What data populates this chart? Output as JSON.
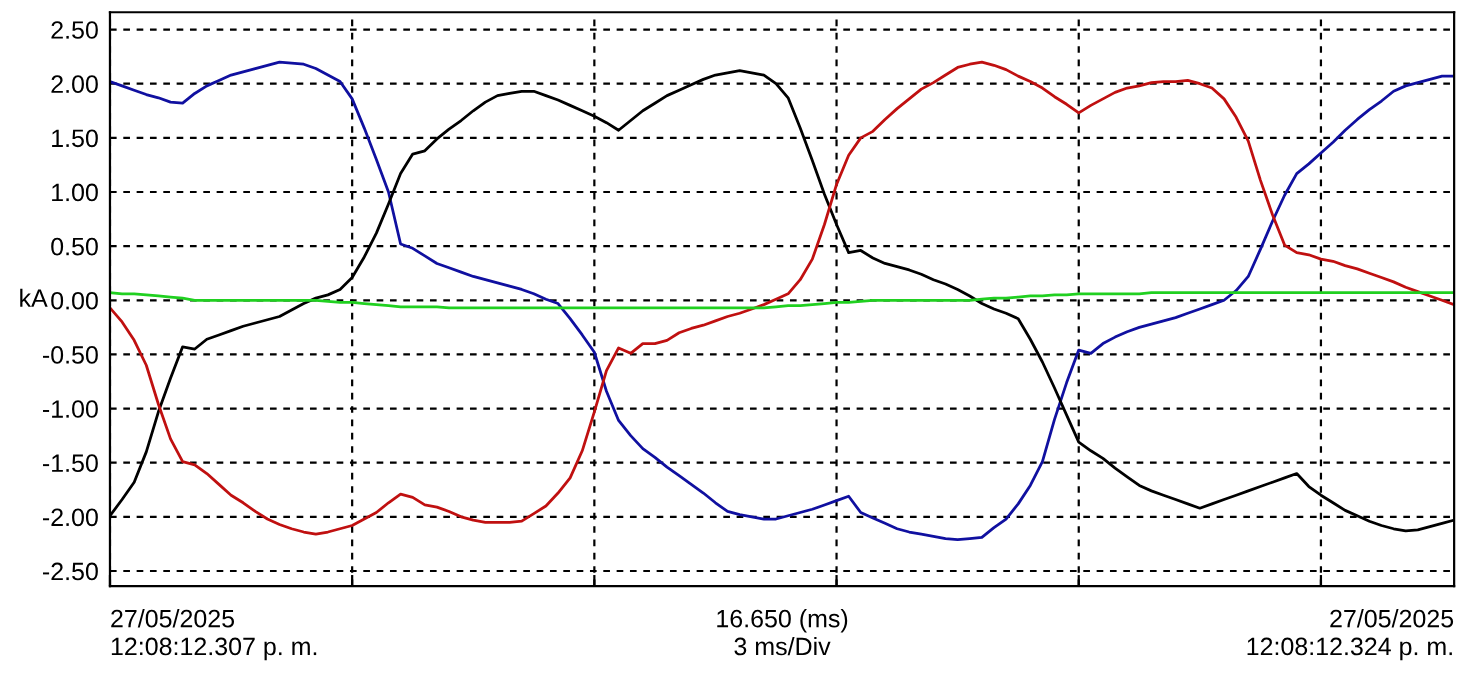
{
  "chart_data": {
    "type": "line",
    "ylabel": "kA",
    "categories": [
      null,
      null,
      null,
      null,
      null,
      null,
      null,
      null,
      null,
      null,
      null,
      null,
      null,
      null,
      null,
      null,
      null,
      null,
      null,
      null,
      null,
      null,
      null,
      null,
      null,
      null,
      null,
      null,
      null,
      null,
      null,
      null,
      null,
      null,
      null,
      null,
      null,
      null,
      null,
      null,
      null,
      null,
      null,
      null,
      null,
      null,
      null,
      null,
      null,
      null,
      null,
      null,
      null,
      null,
      null,
      null,
      null,
      null,
      null,
      null,
      null,
      null,
      null,
      null,
      null,
      null,
      null,
      null,
      null,
      null,
      null,
      null,
      null,
      null,
      null,
      null,
      null,
      null,
      null,
      null,
      null,
      null,
      null,
      null,
      null,
      null,
      null,
      null,
      null,
      null,
      null,
      null,
      null,
      null,
      null,
      null,
      null,
      null,
      null,
      null,
      null,
      null,
      null,
      null,
      null,
      null,
      null,
      null,
      null,
      null,
      null,
      null
    ],
    "ylim": [
      -2.64,
      2.66
    ],
    "yticks": [
      {
        "value": 2.5,
        "label": "2.50"
      },
      {
        "value": 2,
        "label": "2.00"
      },
      {
        "value": 1.5,
        "label": "1.50"
      },
      {
        "value": 1,
        "label": "1.00"
      },
      {
        "value": 0.5,
        "label": "0.50"
      },
      {
        "value": 0,
        "label": "0.00"
      },
      {
        "value": -0.5,
        "label": "-0.50"
      },
      {
        "value": -1,
        "label": "-1.00"
      },
      {
        "value": -1.5,
        "label": "-1.50"
      },
      {
        "value": -2,
        "label": "-2.00"
      },
      {
        "value": -2.5,
        "label": "-2.50"
      }
    ],
    "tick_labels": "y",
    "grid": true,
    "line_style": "solid",
    "marker": "none",
    "annotations": [
      "27/05/2025\n12:08:12.307 p. m.",
      "16.650 (ms)\n3 ms/Div",
      "27/05/2025\n12:08:12.324 p. m."
    ],
    "series": [
      {
        "color": "#1010a0",
        "values": [
          2.02,
          1.98,
          1.94,
          1.9,
          1.87,
          1.83,
          1.82,
          1.91,
          1.98,
          2.03,
          2.08,
          2.11,
          2.14,
          2.17,
          2.2,
          2.19,
          2.18,
          2.14,
          2.08,
          2.02,
          1.86,
          1.59,
          1.3,
          1.0,
          0.52,
          0.48,
          0.41,
          0.34,
          0.3,
          0.26,
          0.22,
          0.19,
          0.16,
          0.13,
          0.1,
          0.06,
          0.01,
          -0.03,
          -0.17,
          -0.32,
          -0.48,
          -0.84,
          -1.11,
          -1.25,
          -1.37,
          -1.45,
          -1.54,
          -1.62,
          -1.7,
          -1.78,
          -1.87,
          -1.95,
          -1.98,
          -2.0,
          -2.02,
          -2.02,
          -1.99,
          -1.96,
          -1.93,
          -1.89,
          -1.85,
          -1.81,
          -1.96,
          -2.01,
          -2.06,
          -2.11,
          -2.14,
          -2.16,
          -2.18,
          -2.2,
          -2.21,
          -2.2,
          -2.19,
          -2.1,
          -2.02,
          -1.88,
          -1.71,
          -1.49,
          -1.1,
          -0.76,
          -0.46,
          -0.49,
          -0.4,
          -0.34,
          -0.29,
          -0.25,
          -0.22,
          -0.19,
          -0.16,
          -0.12,
          -0.08,
          -0.04,
          0,
          0.09,
          0.22,
          0.47,
          0.73,
          0.97,
          1.17,
          1.26,
          1.36,
          1.46,
          1.57,
          1.67,
          1.76,
          1.84,
          1.93,
          1.98,
          2.01,
          2.04,
          2.07,
          2.07
        ]
      },
      {
        "color": "#000000",
        "values": [
          -1.99,
          -1.84,
          -1.68,
          -1.4,
          -1.03,
          -0.72,
          -0.43,
          -0.45,
          -0.36,
          -0.32,
          -0.28,
          -0.24,
          -0.21,
          -0.18,
          -0.15,
          -0.09,
          -0.03,
          0.02,
          0.05,
          0.1,
          0.21,
          0.4,
          0.62,
          0.89,
          1.17,
          1.35,
          1.38,
          1.49,
          1.58,
          1.66,
          1.75,
          1.83,
          1.89,
          1.91,
          1.93,
          1.93,
          1.89,
          1.85,
          1.8,
          1.75,
          1.7,
          1.64,
          1.57,
          1.66,
          1.75,
          1.82,
          1.89,
          1.94,
          1.99,
          2.04,
          2.08,
          2.1,
          2.12,
          2.1,
          2.08,
          2.0,
          1.87,
          1.59,
          1.29,
          0.98,
          0.7,
          0.44,
          0.46,
          0.39,
          0.34,
          0.31,
          0.28,
          0.24,
          0.19,
          0.15,
          0.1,
          0.04,
          -0.03,
          -0.08,
          -0.12,
          -0.17,
          -0.36,
          -0.57,
          -0.81,
          -1.06,
          -1.31,
          -1.39,
          -1.46,
          -1.55,
          -1.63,
          -1.71,
          -1.76,
          -1.8,
          -1.84,
          -1.88,
          -1.92,
          -1.88,
          -1.84,
          -1.8,
          -1.76,
          -1.72,
          -1.68,
          -1.64,
          -1.6,
          -1.72,
          -1.8,
          -1.87,
          -1.94,
          -1.99,
          -2.04,
          -2.08,
          -2.11,
          -2.13,
          -2.12,
          -2.09,
          -2.06,
          -2.03
        ]
      },
      {
        "color": "#c01010",
        "values": [
          -0.07,
          -0.2,
          -0.37,
          -0.6,
          -0.96,
          -1.28,
          -1.49,
          -1.52,
          -1.6,
          -1.7,
          -1.8,
          -1.87,
          -1.95,
          -2.02,
          -2.07,
          -2.11,
          -2.14,
          -2.16,
          -2.14,
          -2.11,
          -2.08,
          -2.02,
          -1.96,
          -1.87,
          -1.79,
          -1.82,
          -1.89,
          -1.91,
          -1.95,
          -2.0,
          -2.03,
          -2.05,
          -2.05,
          -2.05,
          -2.04,
          -1.97,
          -1.9,
          -1.78,
          -1.64,
          -1.39,
          -1.03,
          -0.65,
          -0.44,
          -0.49,
          -0.4,
          -0.4,
          -0.37,
          -0.3,
          -0.26,
          -0.23,
          -0.19,
          -0.15,
          -0.12,
          -0.08,
          -0.04,
          0.01,
          0.06,
          0.19,
          0.38,
          0.7,
          1.07,
          1.34,
          1.5,
          1.56,
          1.67,
          1.77,
          1.86,
          1.95,
          2.01,
          2.08,
          2.15,
          2.18,
          2.2,
          2.17,
          2.13,
          2.07,
          2.02,
          1.96,
          1.88,
          1.81,
          1.73,
          1.8,
          1.86,
          1.92,
          1.96,
          1.98,
          2.01,
          2.02,
          2.02,
          2.03,
          2.0,
          1.96,
          1.86,
          1.69,
          1.47,
          1.11,
          0.79,
          0.51,
          0.44,
          0.42,
          0.38,
          0.36,
          0.32,
          0.29,
          0.25,
          0.21,
          0.17,
          0.12,
          0.08,
          0.04,
          0,
          -0.04
        ]
      },
      {
        "color": "#20d020",
        "values": [
          0.07,
          0.06,
          0.06,
          0.05,
          0.04,
          0.03,
          0.02,
          0,
          0,
          0,
          0,
          0,
          0,
          0,
          0,
          0,
          0,
          0,
          -0.01,
          -0.02,
          -0.02,
          -0.03,
          -0.04,
          -0.05,
          -0.06,
          -0.06,
          -0.06,
          -0.06,
          -0.07,
          -0.07,
          -0.07,
          -0.07,
          -0.07,
          -0.07,
          -0.07,
          -0.07,
          -0.07,
          -0.07,
          -0.07,
          -0.07,
          -0.07,
          -0.07,
          -0.07,
          -0.07,
          -0.07,
          -0.07,
          -0.07,
          -0.07,
          -0.07,
          -0.07,
          -0.07,
          -0.07,
          -0.07,
          -0.07,
          -0.07,
          -0.06,
          -0.05,
          -0.05,
          -0.04,
          -0.03,
          -0.02,
          -0.02,
          -0.01,
          0,
          0,
          0,
          0,
          0,
          0,
          0,
          0,
          0,
          0.01,
          0.02,
          0.02,
          0.03,
          0.04,
          0.04,
          0.05,
          0.05,
          0.06,
          0.06,
          0.06,
          0.06,
          0.06,
          0.06,
          0.07,
          0.07,
          0.07,
          0.07,
          0.07,
          0.07,
          0.07,
          0.07,
          0.07,
          0.07,
          0.07,
          0.07,
          0.07,
          0.07,
          0.07,
          0.07,
          0.07,
          0.07,
          0.07,
          0.07,
          0.07,
          0.07,
          0.07,
          0.07,
          0.07,
          0.07
        ]
      }
    ]
  }
}
